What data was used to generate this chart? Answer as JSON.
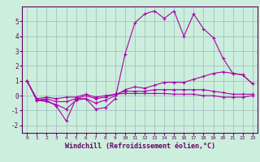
{
  "x": [
    0,
    1,
    2,
    3,
    4,
    5,
    6,
    7,
    8,
    9,
    10,
    11,
    12,
    13,
    14,
    15,
    16,
    17,
    18,
    19,
    20,
    21,
    22,
    23
  ],
  "line1": [
    1.0,
    -0.3,
    -0.3,
    -0.7,
    -1.7,
    -0.2,
    -0.2,
    -0.9,
    -0.8,
    -0.2,
    2.8,
    4.9,
    5.5,
    5.7,
    5.2,
    5.7,
    4.0,
    5.5,
    4.5,
    3.9,
    2.5,
    1.5,
    1.4,
    0.8
  ],
  "line2": [
    1.0,
    -0.3,
    -0.4,
    -0.6,
    -0.9,
    -0.3,
    -0.2,
    -0.5,
    -0.3,
    0.0,
    0.4,
    0.6,
    0.5,
    0.7,
    0.9,
    0.9,
    0.9,
    1.1,
    1.3,
    1.5,
    1.6,
    1.5,
    1.4,
    0.8
  ],
  "line3": [
    1.0,
    -0.3,
    -0.2,
    -0.4,
    -0.4,
    -0.2,
    0.0,
    -0.2,
    -0.1,
    0.1,
    0.3,
    0.3,
    0.3,
    0.4,
    0.4,
    0.4,
    0.4,
    0.4,
    0.4,
    0.3,
    0.2,
    0.1,
    0.1,
    0.1
  ],
  "line4": [
    1.0,
    -0.2,
    -0.1,
    -0.2,
    -0.1,
    -0.1,
    0.1,
    -0.1,
    0.0,
    0.1,
    0.15,
    0.15,
    0.15,
    0.15,
    0.15,
    0.1,
    0.1,
    0.1,
    0.0,
    0.0,
    -0.1,
    -0.1,
    -0.1,
    0.0
  ],
  "line_color": "#aa00aa",
  "bg_color": "#cceedd",
  "grid_color": "#99bbbb",
  "axis_color": "#660066",
  "xlabel": "Windchill (Refroidissement éolien,°C)",
  "ylim": [
    -2.5,
    6.0
  ],
  "xlim": [
    -0.5,
    23.5
  ],
  "yticks": [
    -2,
    -1,
    0,
    1,
    2,
    3,
    4,
    5
  ],
  "xticks": [
    0,
    1,
    2,
    3,
    4,
    5,
    6,
    7,
    8,
    9,
    10,
    11,
    12,
    13,
    14,
    15,
    16,
    17,
    18,
    19,
    20,
    21,
    22,
    23
  ]
}
